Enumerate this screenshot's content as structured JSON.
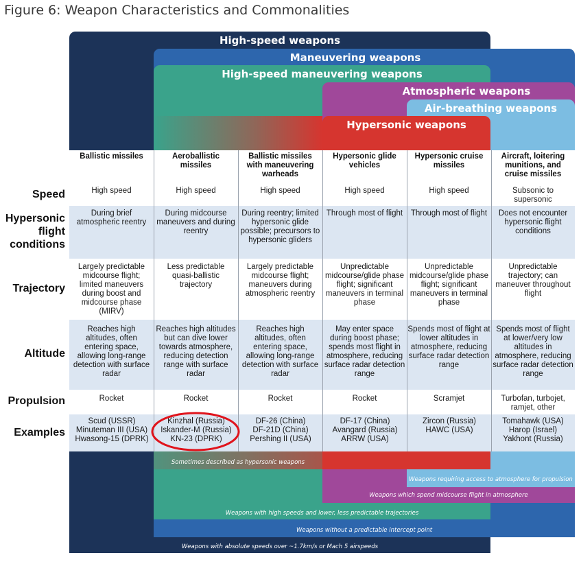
{
  "figure_title": "Figure 6: Weapon Characteristics and Commonalities",
  "colors": {
    "navy": "#1c3358",
    "blue": "#2d66ad",
    "teal": "#3aa38b",
    "purple": "#a0489a",
    "lightblue": "#7cbde2",
    "red": "#d6352f",
    "row_alt": "#dce6f2",
    "row_white": "#ffffff",
    "highlight_circle": "#e0141c"
  },
  "bands": [
    {
      "label": "High-speed weapons",
      "color": "navy"
    },
    {
      "label": "Maneuvering weapons",
      "color": "blue"
    },
    {
      "label": "High-speed maneuvering weapons",
      "color": "teal"
    },
    {
      "label": "Atmospheric weapons",
      "color": "purple"
    },
    {
      "label": "Air-breathing weapons",
      "color": "lightblue"
    },
    {
      "label": "Hypersonic weapons",
      "color": "red"
    }
  ],
  "columns": [
    "Ballistic missiles",
    "Aeroballistic missiles",
    "Ballistic missiles with maneuvering warheads",
    "Hypersonic glide vehicles",
    "Hypersonic cruise missiles",
    "Aircraft, loitering munitions, and cruise missiles"
  ],
  "rows": [
    {
      "label": "Speed",
      "cells": [
        "High speed",
        "High speed",
        "High speed",
        "High speed",
        "High speed",
        "Subsonic to supersonic"
      ]
    },
    {
      "label": "Hypersonic flight conditions",
      "cells": [
        "During brief atmospheric reentry",
        "During midcourse maneuvers and during reentry",
        "During reentry; limited hypersonic glide possible; precursors to hypersonic gliders",
        "Through most of flight",
        "Through most of flight",
        "Does not encounter hypersonic flight conditions"
      ]
    },
    {
      "label": "Trajectory",
      "cells": [
        "Largely predictable midcourse flight; limited maneuvers during boost and midcourse phase (MIRV)",
        "Less predictable quasi-ballistic trajectory",
        "Largely predictable midcourse flight; maneuvers during atmospheric reentry",
        "Unpredictable midcourse/glide phase flight; significant maneuvers in terminal phase",
        "Unpredictable midcourse/glide phase flight; significant maneuvers in terminal phase",
        "Unpredictable trajectory; can maneuver throughout flight"
      ]
    },
    {
      "label": "Altitude",
      "cells": [
        "Reaches high altitudes, often entering space, allowing long-range detection with surface radar",
        "Reaches high altitudes but can dive lower towards atmosphere, reducing detection range with surface radar",
        "Reaches high altitudes, often entering space, allowing long-range detection with surface radar",
        "May enter space during boost phase; spends most flight in atmosphere, reducing surface radar detection range",
        "Spends most of flight at lower altitudes in atmosphere, reducing surface radar detection range",
        "Spends most of flight at lower/very low altitudes in atmosphere, reducing surface radar detection range"
      ]
    },
    {
      "label": "Propulsion",
      "cells": [
        "Rocket",
        "Rocket",
        "Rocket",
        "Rocket",
        "Scramjet",
        "Turbofan, turbojet, ramjet, other"
      ]
    },
    {
      "label": "Examples",
      "cells": [
        "Scud (USSR)\nMinuteman III (USA)\nHwasong-15 (DPRK)",
        "Kinzhal (Russia)\nIskander-M (Russia)\nKN-23 (DPRK)",
        "DF-26 (China)\nDF-21D (China)\nPershing II (USA)",
        "DF-17 (China)\nAvangard (Russia)\nARRW (USA)",
        "Zircon (Russia)\nHAWC (USA)",
        "Tomahawk (USA)\nHarop (Israel)\nYakhont (Russia)"
      ]
    }
  ],
  "bottom_strips": [
    {
      "label": "Sometimes described as hypersonic weapons"
    },
    {
      "label": "Weapons requiring access to atmosphere for propulsion"
    },
    {
      "label": "Weapons which spend midcourse flight in atmosphere"
    },
    {
      "label": "Weapons with high speeds and lower, less predictable trajectories"
    },
    {
      "label": "Weapons without a predictable intercept point"
    },
    {
      "label": "Weapons with absolute speeds over ~1.7km/s or Mach 5 airspeeds"
    }
  ]
}
